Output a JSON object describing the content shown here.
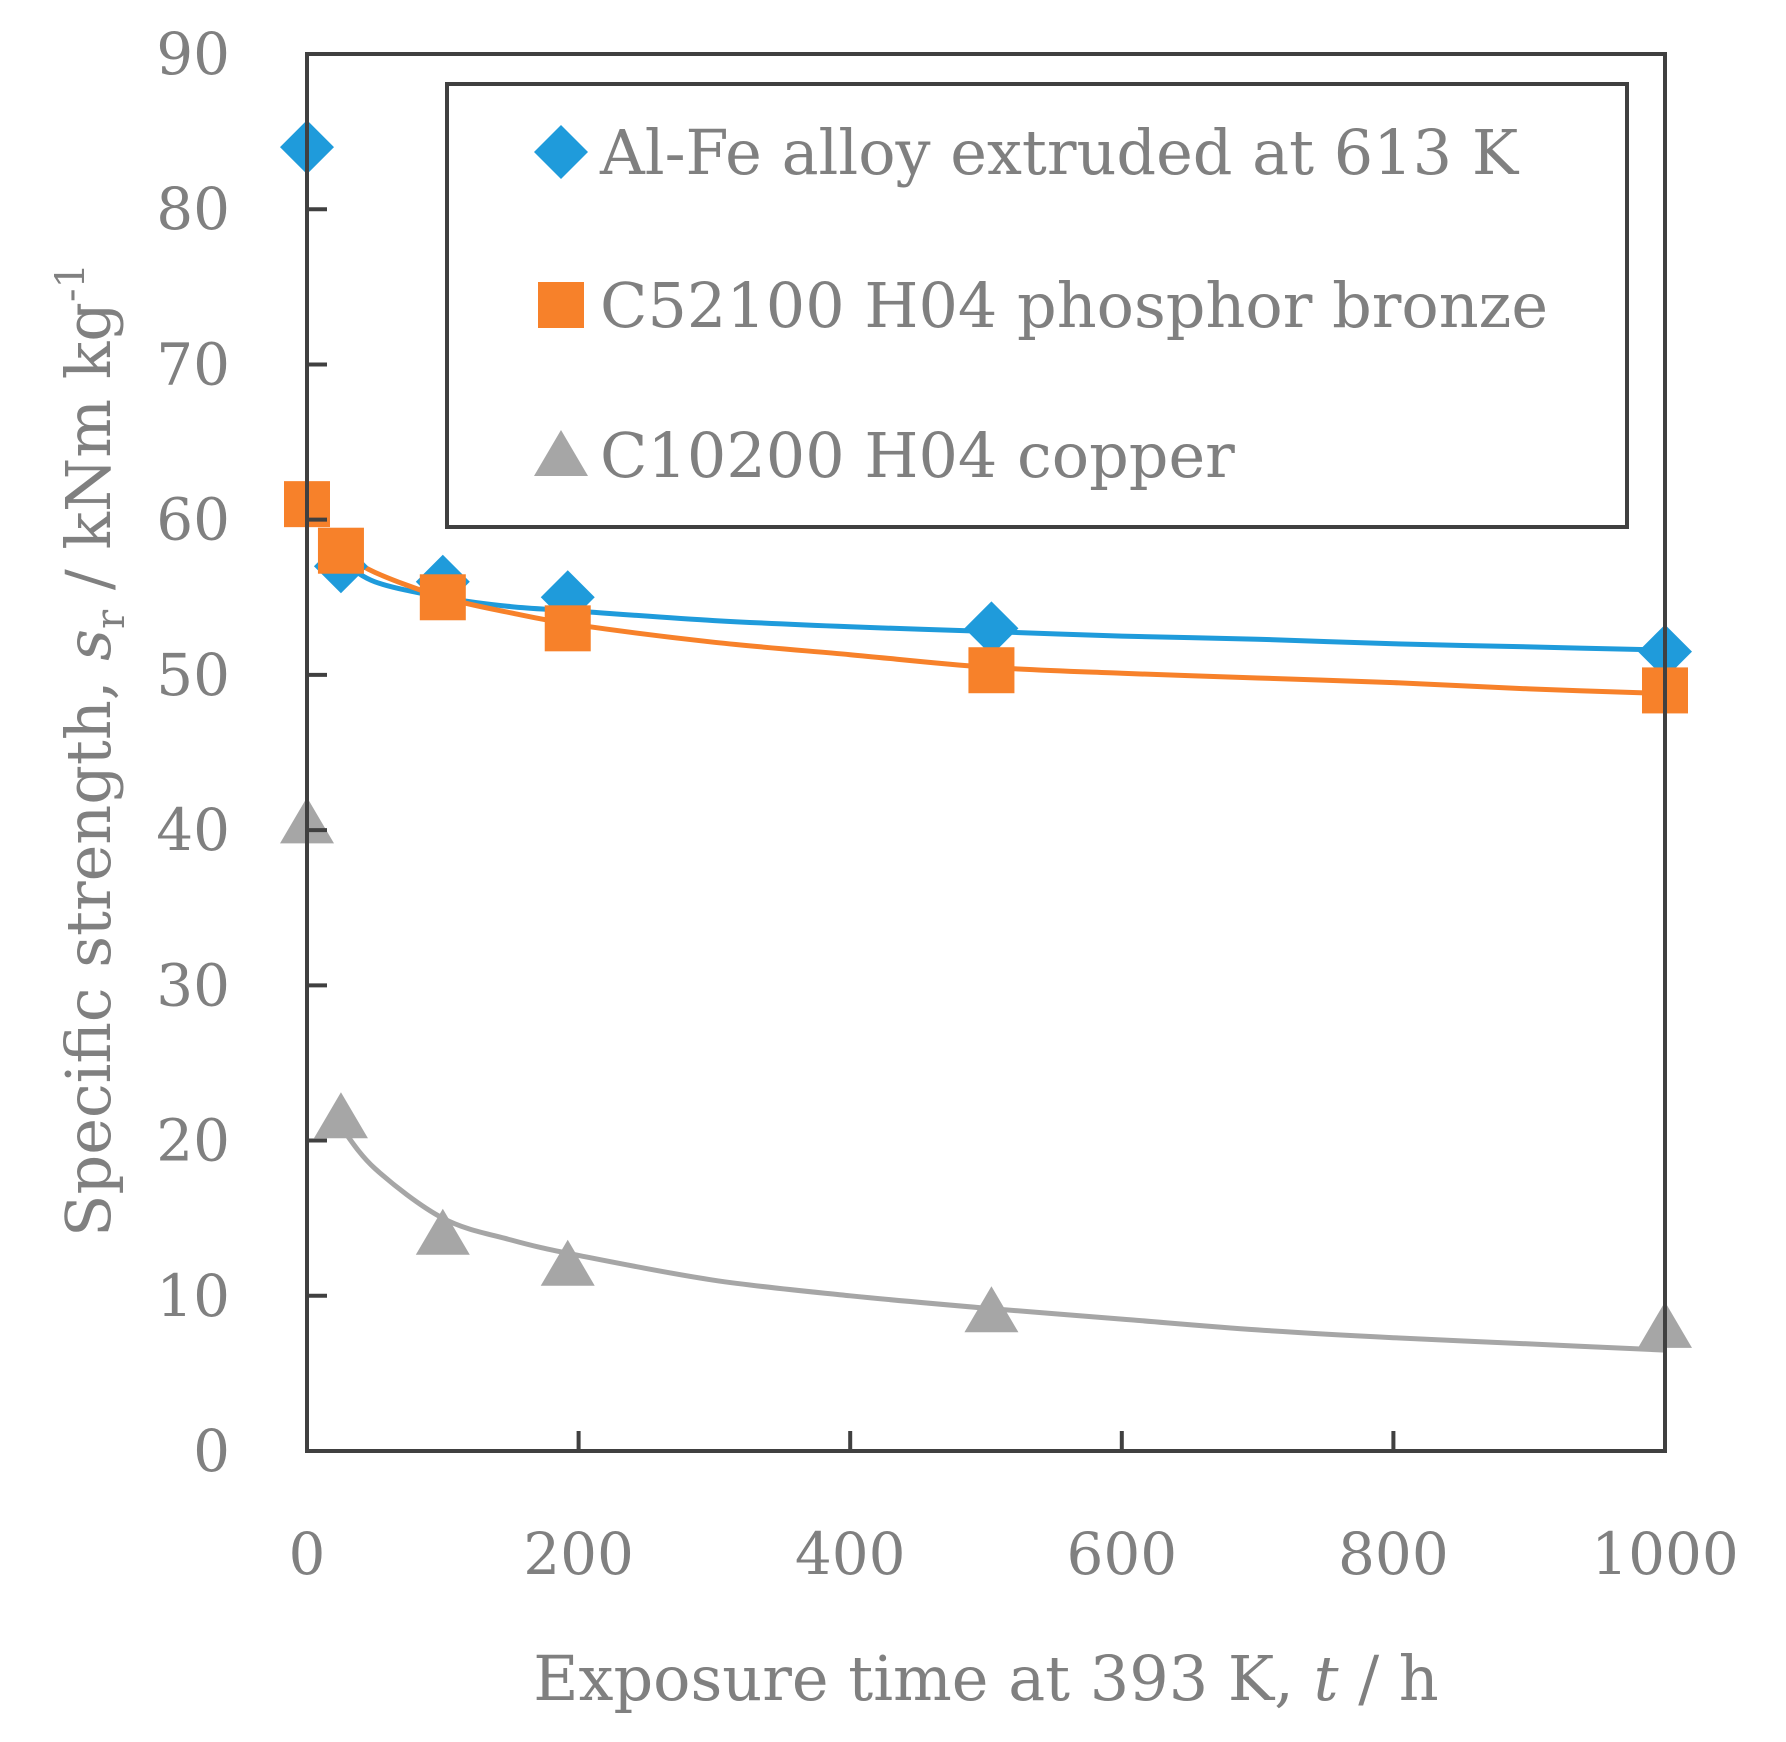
{
  "chart_data": {
    "type": "scatter",
    "xlabel": {
      "pre": "Exposure time at 393 K, ",
      "var": "t",
      "post": " / h"
    },
    "ylabel": {
      "pre": "Specific strength, ",
      "var": "s",
      "sub": "r",
      "post": " / kNm kg",
      "sup": "-1"
    },
    "xlim": [
      0,
      1000
    ],
    "ylim": [
      0,
      90
    ],
    "xticks": [
      0,
      200,
      400,
      600,
      800,
      1000
    ],
    "yticks": [
      0,
      10,
      20,
      30,
      40,
      50,
      60,
      70,
      80,
      90
    ],
    "grid": false,
    "legend_position": "top-right",
    "series": [
      {
        "name": "Al-Fe alloy extruded at 613 K",
        "marker": "diamond",
        "color": "#1f9bdb",
        "x": [
          0,
          25,
          100,
          192,
          504,
          1000
        ],
        "y": [
          84,
          57,
          56,
          55,
          53,
          51.5
        ],
        "trendline": {
          "x": [
            25,
            50,
            100,
            150,
            200,
            300,
            400,
            500,
            600,
            700,
            800,
            900,
            1000
          ],
          "y": [
            57.4,
            56.0,
            55.0,
            54.4,
            54.1,
            53.5,
            53.1,
            52.8,
            52.5,
            52.3,
            52.0,
            51.8,
            51.6
          ]
        }
      },
      {
        "name": "C52100 H04 phosphor bronze",
        "marker": "square",
        "color": "#f7812a",
        "x": [
          0,
          25,
          100,
          192,
          504,
          1000
        ],
        "y": [
          61,
          58,
          55,
          53,
          50.3,
          49
        ],
        "trendline": {
          "x": [
            25,
            50,
            100,
            150,
            200,
            300,
            400,
            500,
            600,
            700,
            800,
            900,
            1000
          ],
          "y": [
            57.9,
            56.6,
            55.0,
            54.0,
            53.2,
            52.1,
            51.3,
            50.5,
            50.1,
            49.8,
            49.5,
            49.1,
            48.8
          ]
        }
      },
      {
        "name": "C10200 H04 copper",
        "marker": "triangle",
        "color": "#a6a6a6",
        "x": [
          0,
          25,
          100,
          192,
          504,
          1000
        ],
        "y": [
          40.5,
          21.5,
          14,
          12,
          9,
          8
        ],
        "trendline": {
          "x": [
            25,
            50,
            100,
            150,
            200,
            300,
            400,
            500,
            600,
            700,
            800,
            900,
            1000
          ],
          "y": [
            20.9,
            18.2,
            15.0,
            13.6,
            12.6,
            11.0,
            10.0,
            9.2,
            8.5,
            7.8,
            7.3,
            6.9,
            6.5
          ]
        }
      }
    ]
  }
}
